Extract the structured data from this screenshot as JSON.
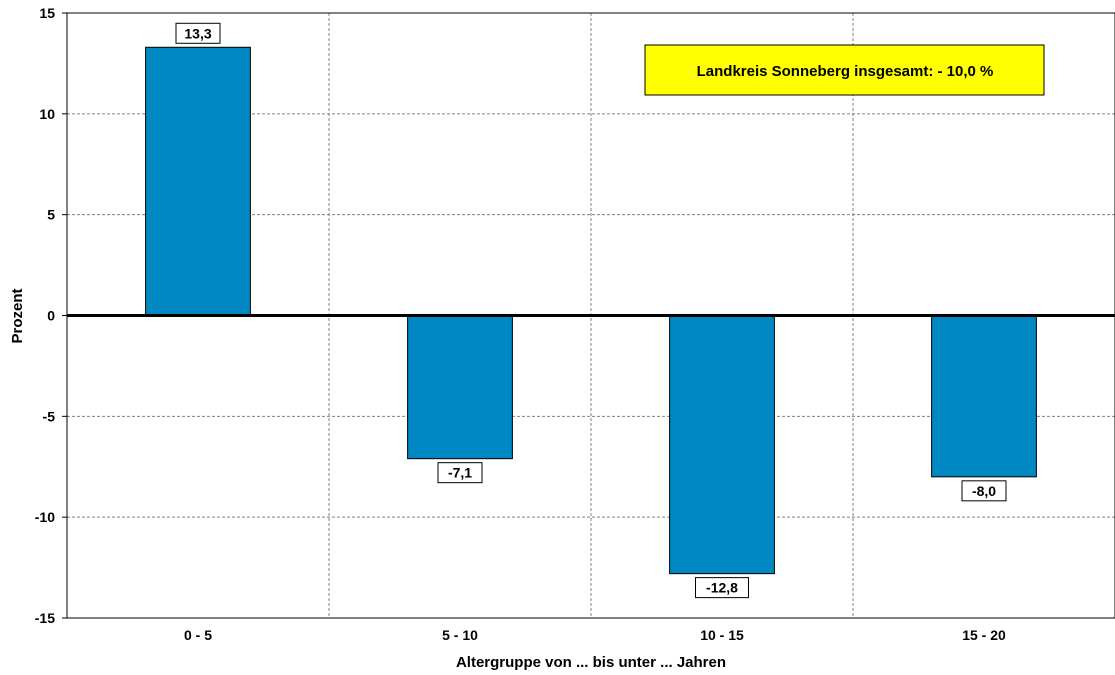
{
  "chart_data": {
    "type": "bar",
    "categories": [
      "0 - 5",
      "5 - 10",
      "10 - 15",
      "15 - 20"
    ],
    "values": [
      13.3,
      -7.1,
      -12.8,
      -8.0
    ],
    "value_labels": [
      "13,3",
      "-7,1",
      "-12,8",
      "-8,0"
    ],
    "xlabel": "Altergruppe von ... bis unter ... Jahren",
    "ylabel": "Prozent",
    "ylim": [
      -15,
      15
    ],
    "yticks": [
      15,
      10,
      5,
      0,
      -5,
      -10,
      -15
    ],
    "grid": true,
    "annotation": "Landkreis Sonneberg insgesamt:  - 10,0 %",
    "colors": {
      "bar": "#0088c2",
      "annotation_bg": "#ffff00",
      "grid": "#808080"
    }
  }
}
